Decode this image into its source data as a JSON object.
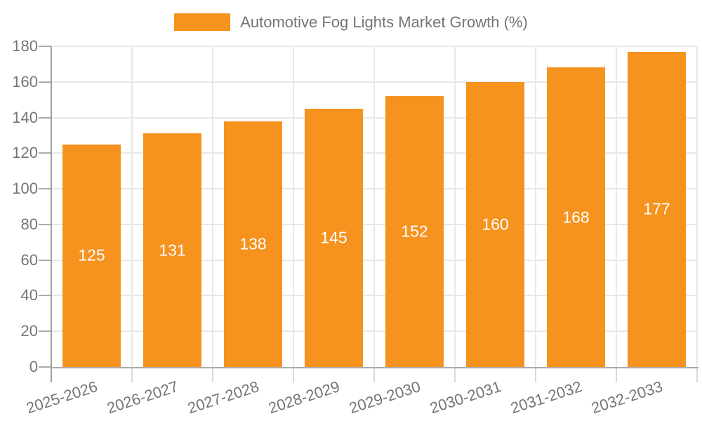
{
  "chart_data": {
    "type": "bar",
    "title": "Automotive Fog Lights Market Growth (%)",
    "categories": [
      "2025-2026",
      "2026-2027",
      "2027-2028",
      "2028-2029",
      "2029-2030",
      "2030-2031",
      "2031-2032",
      "2032-2033"
    ],
    "values": [
      125,
      131,
      138,
      145,
      152,
      160,
      168,
      177
    ],
    "bar_value_labels": [
      "125",
      "131",
      "138",
      "145",
      "152",
      "160",
      "168",
      "177"
    ],
    "xlabel": "",
    "ylabel": "",
    "ylim": [
      0,
      180
    ],
    "yticks": [
      0,
      20,
      40,
      60,
      80,
      100,
      120,
      140,
      160,
      180
    ],
    "grid": true,
    "legend": {
      "position": "top",
      "label": "Automotive Fog Lights Market Growth (%)"
    },
    "x_label_rotation_deg": -18,
    "colors": {
      "bar": "#F6921E",
      "bar_value_label": "#FFFFFF",
      "axis_text": "#757575",
      "gridline": "#E8E8E8",
      "y_axis_line": "#9E9E9E",
      "x_axis_line": "#ABABAB",
      "y_tick": "#ABABAB",
      "x_tick": "#D9D9D9",
      "background": "#FFFFFF"
    }
  }
}
